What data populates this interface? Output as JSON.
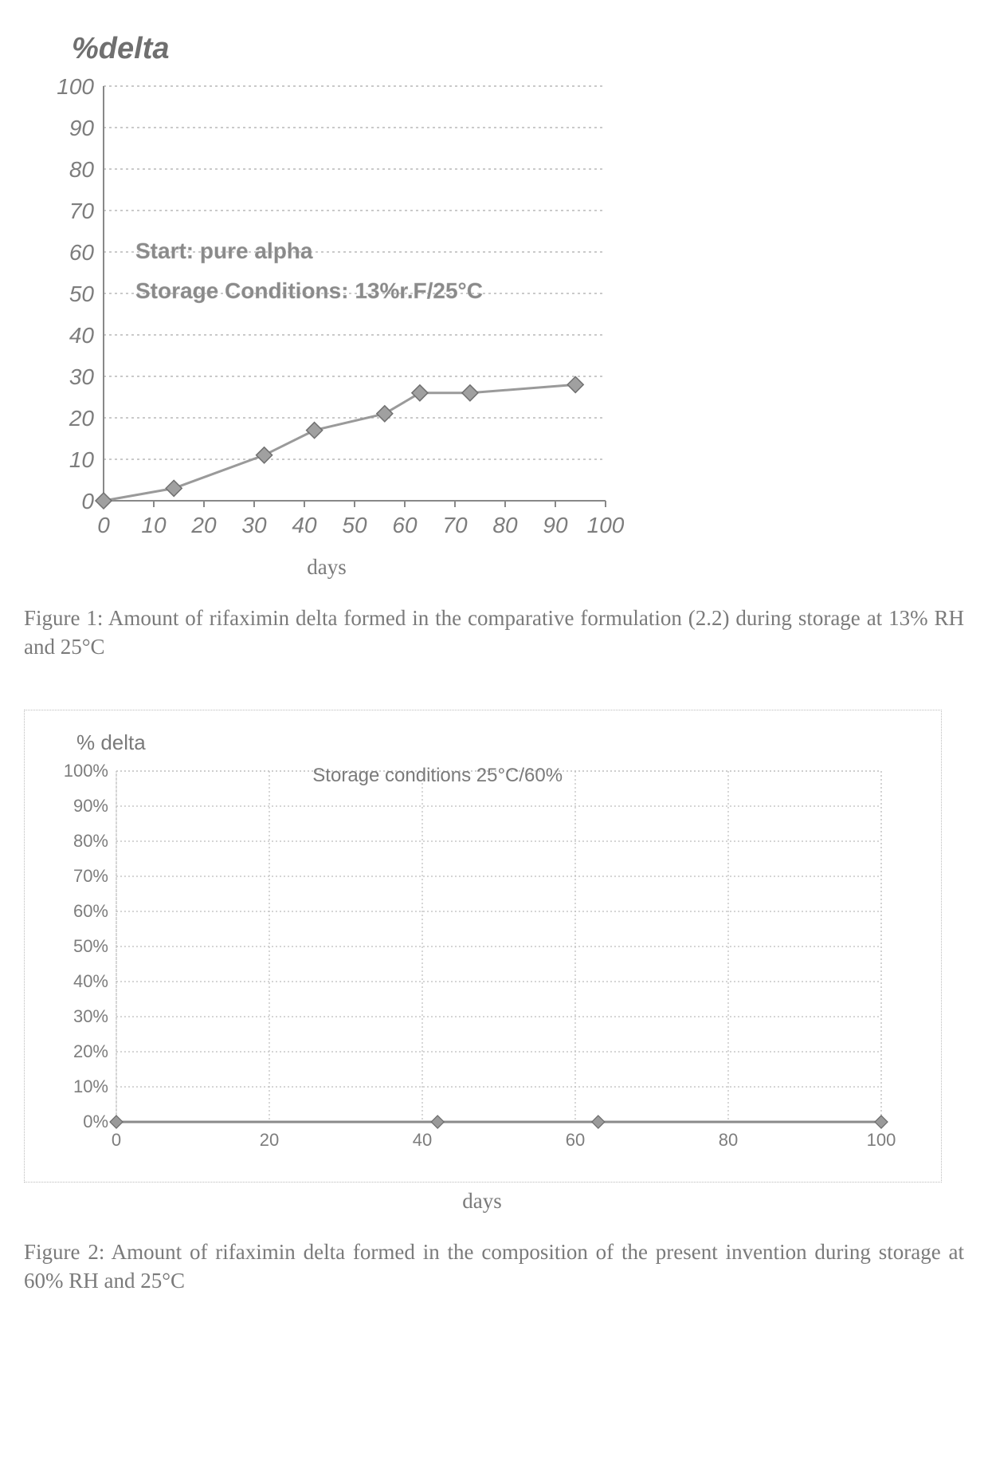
{
  "chart1": {
    "type": "line",
    "title": "%delta",
    "annotation1": "Start: pure alpha",
    "annotation2": "Storage Conditions: 13%r.F/25°C",
    "xlabel": "days",
    "xlim": [
      0,
      100
    ],
    "ylim": [
      0,
      100
    ],
    "xticks": [
      0,
      10,
      20,
      30,
      40,
      50,
      60,
      70,
      80,
      90,
      100
    ],
    "yticks": [
      0,
      10,
      20,
      30,
      40,
      50,
      60,
      70,
      80,
      90,
      100
    ],
    "x": [
      0,
      14,
      32,
      42,
      56,
      63,
      73,
      94
    ],
    "y": [
      0,
      3,
      11,
      17,
      21,
      26,
      26,
      28
    ],
    "line_color": "#9a9a9a",
    "marker_fill": "#a0a0a0",
    "marker_stroke": "#707070",
    "marker_size": 10,
    "line_width": 3,
    "grid_color": "#b8b8b8",
    "axis_color": "#888888",
    "tick_fontsize": 28,
    "tick_font": "Arial",
    "annotation_fontsize": 28,
    "plot_bg": "#ffffff"
  },
  "caption1": "Figure 1: Amount of rifaximin delta formed in the comparative formulation (2.2) during storage at 13% RH and 25°C",
  "chart2": {
    "type": "line",
    "title": "% delta",
    "annotation": "Storage conditions 25°C/60%",
    "xlabel": "days",
    "xlim": [
      0,
      100
    ],
    "ylim": [
      0,
      100
    ],
    "xticks": [
      0,
      20,
      40,
      60,
      80,
      100
    ],
    "yticks_pct": [
      0,
      10,
      20,
      30,
      40,
      50,
      60,
      70,
      80,
      90,
      100
    ],
    "x": [
      0,
      42,
      63,
      100
    ],
    "y": [
      0,
      0,
      0,
      0
    ],
    "line_color": "#8a8a8a",
    "marker_fill": "#9a9a9a",
    "marker_stroke": "#6a6a6a",
    "marker_size": 8,
    "line_width": 3,
    "grid_color": "#bcbcbc",
    "tick_fontsize": 22,
    "tick_font": "Arial",
    "annotation_fontsize": 24,
    "plot_bg": "#ffffff",
    "frame_color": "#bcbcbc"
  },
  "caption2": "Figure 2: Amount of rifaximin delta formed in the composition of the present invention during storage at 60% RH and 25°C"
}
